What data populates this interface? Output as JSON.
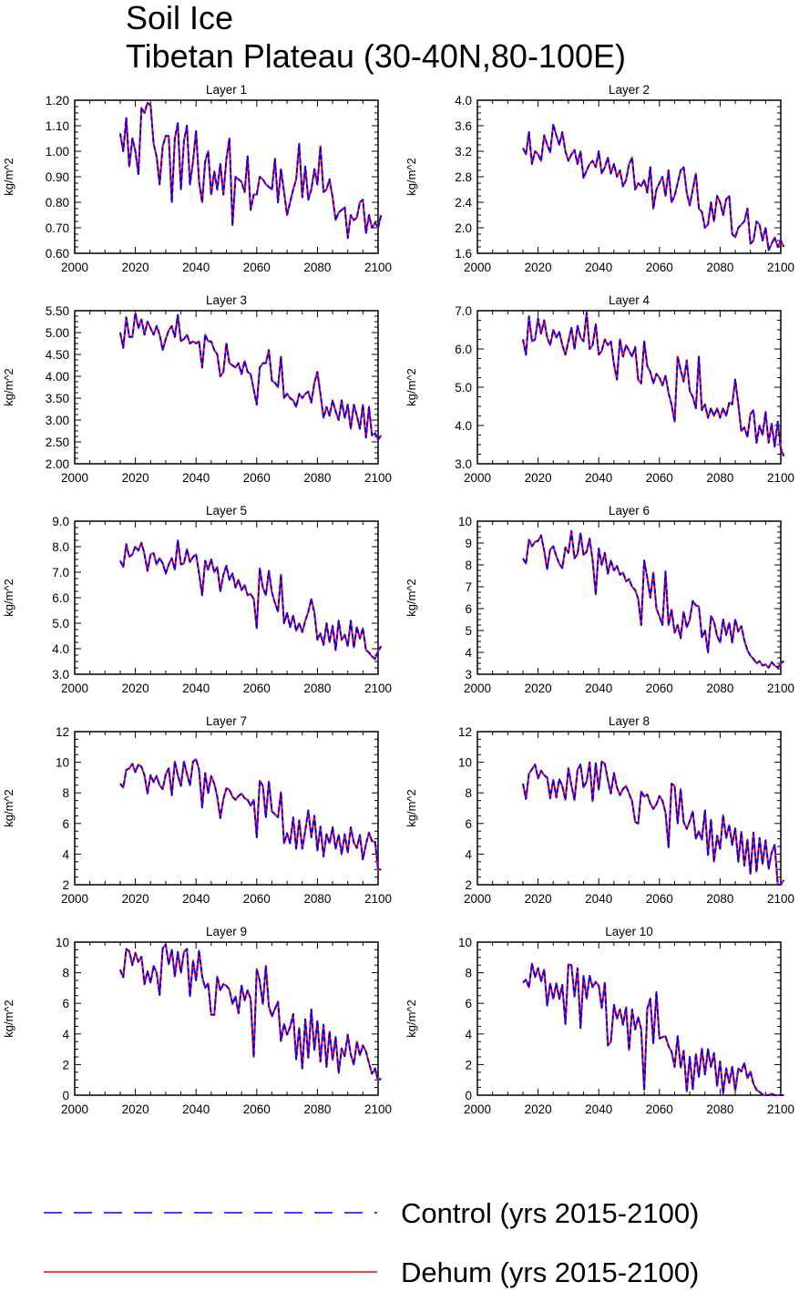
{
  "title": "Soil Ice",
  "subtitle": "Tibetan Plateau (30-40N,80-100E)",
  "legend": [
    {
      "label": "Control (yrs 2015-2100)",
      "color": "#0000ff",
      "style": "dashed"
    },
    {
      "label": "Dehum (yrs 2015-2100)",
      "color": "#ff0000",
      "style": "solid"
    }
  ],
  "chart_data": [
    {
      "type": "line",
      "title": "Layer 1",
      "xlabel": "",
      "ylabel": "kg/m^2",
      "xlim": [
        2000,
        2100
      ],
      "ylim": [
        0.6,
        1.2
      ],
      "xticks": [
        2000,
        2020,
        2040,
        2060,
        2080,
        2100
      ],
      "yticks": [
        0.6,
        0.7,
        0.8,
        0.9,
        1.0,
        1.1,
        1.2
      ],
      "ydecimals": 2,
      "x_start": 2015,
      "values": [
        1.07,
        1.0,
        1.13,
        0.94,
        1.05,
        1.0,
        0.91,
        1.17,
        1.15,
        1.19,
        1.18,
        1.03,
        0.98,
        0.87,
        1.02,
        1.06,
        1.06,
        0.8,
        1.05,
        1.11,
        0.85,
        1.04,
        1.1,
        0.87,
        0.96,
        1.08,
        0.88,
        0.8,
        0.96,
        1.0,
        0.83,
        0.92,
        0.85,
        0.95,
        0.83,
        0.97,
        1.05,
        0.71,
        0.9,
        0.89,
        0.88,
        0.84,
        0.98,
        0.77,
        0.83,
        0.83,
        0.9,
        0.89,
        0.87,
        0.86,
        0.85,
        0.97,
        0.8,
        0.93,
        0.84,
        0.75,
        0.8,
        0.85,
        0.89,
        1.03,
        0.82,
        0.94,
        0.81,
        0.85,
        0.93,
        0.87,
        1.02,
        0.84,
        0.85,
        0.89,
        0.82,
        0.73,
        0.76,
        0.77,
        0.78,
        0.66,
        0.75,
        0.73,
        0.74,
        0.8,
        0.81,
        0.68,
        0.75,
        0.7,
        0.72,
        0.7,
        0.75
      ],
      "series": [
        {
          "name": "Control (yrs 2015-2100)"
        },
        {
          "name": "Dehum (yrs 2015-2100)"
        }
      ]
    },
    {
      "type": "line",
      "title": "Layer 2",
      "xlabel": "",
      "ylabel": "kg/m^2",
      "xlim": [
        2000,
        2100
      ],
      "ylim": [
        1.6,
        4.0
      ],
      "xticks": [
        2000,
        2020,
        2040,
        2060,
        2080,
        2100
      ],
      "yticks": [
        1.6,
        2.0,
        2.4,
        2.8,
        3.2,
        3.6,
        4.0
      ],
      "ydecimals": 1,
      "x_start": 2015,
      "values": [
        3.25,
        3.15,
        3.5,
        3.0,
        3.2,
        3.15,
        3.05,
        3.45,
        3.3,
        3.18,
        3.62,
        3.45,
        3.3,
        3.5,
        3.2,
        3.05,
        3.15,
        3.22,
        3.0,
        3.2,
        2.78,
        2.9,
        3.0,
        3.05,
        2.95,
        3.2,
        2.85,
        2.95,
        3.1,
        2.85,
        3.0,
        2.8,
        2.9,
        2.65,
        2.75,
        3.0,
        3.1,
        2.6,
        2.7,
        2.65,
        2.75,
        2.55,
        2.95,
        2.3,
        2.6,
        2.7,
        2.8,
        2.5,
        2.9,
        2.4,
        2.5,
        2.7,
        2.9,
        2.95,
        2.55,
        2.35,
        2.6,
        2.85,
        2.3,
        2.25,
        2.0,
        2.05,
        2.4,
        2.1,
        2.5,
        2.4,
        2.2,
        2.45,
        2.5,
        1.9,
        1.85,
        2.0,
        2.05,
        2.1,
        2.3,
        1.75,
        1.8,
        2.1,
        2.05,
        1.8,
        2.0,
        1.65,
        1.75,
        1.85,
        1.7,
        1.8,
        1.7
      ],
      "series": [
        {
          "name": "Control (yrs 2015-2100)"
        },
        {
          "name": "Dehum (yrs 2015-2100)"
        }
      ]
    },
    {
      "type": "line",
      "title": "Layer 3",
      "xlabel": "",
      "ylabel": "kg/m^2",
      "xlim": [
        2000,
        2100
      ],
      "ylim": [
        2.0,
        5.5
      ],
      "xticks": [
        2000,
        2020,
        2040,
        2060,
        2080,
        2100
      ],
      "yticks": [
        2.0,
        2.5,
        3.0,
        3.5,
        4.0,
        4.5,
        5.0,
        5.5
      ],
      "ydecimals": 2,
      "x_start": 2015,
      "values": [
        5.0,
        4.65,
        5.35,
        4.9,
        4.9,
        5.45,
        5.1,
        5.3,
        4.95,
        5.25,
        5.1,
        4.95,
        5.15,
        4.95,
        4.6,
        4.85,
        5.05,
        5.15,
        4.9,
        5.4,
        4.8,
        4.85,
        4.95,
        4.75,
        4.8,
        4.75,
        4.8,
        4.2,
        4.95,
        4.8,
        4.8,
        4.6,
        4.5,
        4.0,
        4.1,
        4.75,
        4.3,
        4.25,
        4.2,
        4.3,
        4.05,
        4.35,
        4.1,
        4.05,
        3.7,
        3.35,
        4.2,
        4.3,
        4.3,
        4.6,
        3.9,
        3.85,
        3.75,
        4.45,
        3.5,
        3.6,
        3.5,
        3.45,
        3.3,
        3.6,
        3.5,
        3.6,
        3.65,
        3.4,
        3.85,
        4.1,
        3.6,
        3.05,
        3.3,
        3.1,
        3.45,
        3.2,
        3.0,
        3.45,
        3.05,
        3.35,
        2.8,
        3.35,
        3.1,
        2.8,
        3.35,
        2.6,
        3.3,
        2.65,
        2.7,
        2.55,
        2.65
      ],
      "series": [
        {
          "name": "Control (yrs 2015-2100)"
        },
        {
          "name": "Dehum (yrs 2015-2100)"
        }
      ]
    },
    {
      "type": "line",
      "title": "Layer 4",
      "xlabel": "",
      "ylabel": "kg/m^2",
      "xlim": [
        2000,
        2100
      ],
      "ylim": [
        3.0,
        7.0
      ],
      "xticks": [
        2000,
        2020,
        2040,
        2060,
        2080,
        2100
      ],
      "yticks": [
        3.0,
        4.0,
        5.0,
        6.0,
        7.0
      ],
      "ydecimals": 1,
      "x_start": 2015,
      "values": [
        6.25,
        5.85,
        6.85,
        6.2,
        6.25,
        6.8,
        6.4,
        6.75,
        6.3,
        6.1,
        6.5,
        6.3,
        6.45,
        6.1,
        5.85,
        6.2,
        6.55,
        6.0,
        6.6,
        6.3,
        6.2,
        6.95,
        6.0,
        6.1,
        6.65,
        5.85,
        5.95,
        6.25,
        6.1,
        6.2,
        5.6,
        5.2,
        6.25,
        5.8,
        6.1,
        5.95,
        5.8,
        6.05,
        5.2,
        5.1,
        6.2,
        5.55,
        5.4,
        5.1,
        5.35,
        5.25,
        5.05,
        5.3,
        4.85,
        4.55,
        4.1,
        5.8,
        5.45,
        5.15,
        5.7,
        4.9,
        4.75,
        4.45,
        5.8,
        4.4,
        4.55,
        4.2,
        4.45,
        4.25,
        4.45,
        4.2,
        4.45,
        4.25,
        4.6,
        4.55,
        5.2,
        4.55,
        3.85,
        3.95,
        3.7,
        4.3,
        4.4,
        3.55,
        4.0,
        3.75,
        4.35,
        3.55,
        4.05,
        3.45,
        4.1,
        3.4,
        3.2
      ],
      "series": [
        {
          "name": "Control (yrs 2015-2100)"
        },
        {
          "name": "Dehum (yrs 2015-2100)"
        }
      ]
    },
    {
      "type": "line",
      "title": "Layer 5",
      "xlabel": "",
      "ylabel": "kg/m^2",
      "xlim": [
        2000,
        2100
      ],
      "ylim": [
        3.0,
        9.0
      ],
      "xticks": [
        2000,
        2020,
        2040,
        2060,
        2080,
        2100
      ],
      "yticks": [
        3.0,
        4.0,
        5.0,
        6.0,
        7.0,
        8.0,
        9.0
      ],
      "ydecimals": 1,
      "x_start": 2015,
      "values": [
        7.45,
        7.2,
        8.1,
        7.6,
        7.7,
        8.0,
        7.85,
        8.15,
        7.7,
        7.05,
        7.7,
        7.75,
        7.3,
        7.55,
        7.35,
        6.95,
        7.3,
        7.55,
        7.1,
        8.25,
        7.3,
        7.35,
        7.9,
        7.4,
        7.6,
        7.7,
        6.95,
        6.1,
        7.45,
        7.1,
        7.5,
        7.0,
        7.2,
        6.25,
        6.9,
        7.25,
        6.7,
        6.95,
        6.4,
        6.7,
        6.3,
        6.5,
        6.1,
        6.15,
        5.95,
        4.8,
        7.15,
        6.4,
        6.1,
        7.05,
        6.2,
        5.8,
        5.45,
        6.9,
        5.0,
        5.4,
        4.85,
        5.3,
        4.7,
        5.0,
        4.65,
        5.1,
        5.45,
        5.95,
        5.4,
        4.35,
        4.6,
        4.15,
        5.0,
        4.25,
        4.9,
        3.95,
        5.1,
        4.35,
        4.55,
        4.1,
        5.1,
        4.05,
        4.85,
        4.4,
        4.8,
        3.95,
        3.85,
        3.7,
        3.6,
        3.9,
        4.1
      ],
      "series": [
        {
          "name": "Control (yrs 2015-2100)"
        },
        {
          "name": "Dehum (yrs 2015-2100)"
        }
      ]
    },
    {
      "type": "line",
      "title": "Layer 6",
      "xlabel": "",
      "ylabel": "kg/m^2",
      "xlim": [
        2000,
        2100
      ],
      "ylim": [
        3,
        10
      ],
      "xticks": [
        2000,
        2020,
        2040,
        2060,
        2080,
        2100
      ],
      "yticks": [
        3,
        4,
        5,
        6,
        7,
        8,
        9,
        10
      ],
      "ydecimals": 0,
      "x_start": 2015,
      "values": [
        8.3,
        8.05,
        9.15,
        8.85,
        9.05,
        9.1,
        9.35,
        8.65,
        7.8,
        8.7,
        8.85,
        8.4,
        8.05,
        7.85,
        8.8,
        8.55,
        9.55,
        8.3,
        8.5,
        9.45,
        8.45,
        8.6,
        9.2,
        8.2,
        6.65,
        8.75,
        8.0,
        8.55,
        7.6,
        8.2,
        7.75,
        7.95,
        7.55,
        7.65,
        7.25,
        7.35,
        7.0,
        6.85,
        6.45,
        5.25,
        8.2,
        7.4,
        6.5,
        7.65,
        6.0,
        5.65,
        5.25,
        7.7,
        5.25,
        5.95,
        4.9,
        5.25,
        4.65,
        5.85,
        5.15,
        5.5,
        6.35,
        6.15,
        6.1,
        4.7,
        5.0,
        4.0,
        5.65,
        5.4,
        4.75,
        4.45,
        5.5,
        4.8,
        5.35,
        4.45,
        5.5,
        4.95,
        5.2,
        4.55,
        4.1,
        3.85,
        3.7,
        3.5,
        3.6,
        3.4,
        3.45,
        3.3,
        3.55,
        3.4,
        3.3,
        3.5,
        3.6
      ],
      "series": [
        {
          "name": "Control (yrs 2015-2100)"
        },
        {
          "name": "Dehum (yrs 2015-2100)"
        }
      ]
    },
    {
      "type": "line",
      "title": "Layer 7",
      "xlabel": "",
      "ylabel": "kg/m^2",
      "xlim": [
        2000,
        2100
      ],
      "ylim": [
        2,
        12
      ],
      "xticks": [
        2000,
        2020,
        2040,
        2060,
        2080,
        2100
      ],
      "yticks": [
        2,
        4,
        6,
        8,
        10,
        12
      ],
      "ydecimals": 0,
      "x_start": 2015,
      "values": [
        8.6,
        8.35,
        9.5,
        9.6,
        9.9,
        9.35,
        9.85,
        9.7,
        9.15,
        7.95,
        9.15,
        8.7,
        9.1,
        8.5,
        8.25,
        9.2,
        9.6,
        7.85,
        10.05,
        9.15,
        8.45,
        10.05,
        9.25,
        8.5,
        10.05,
        10.2,
        9.5,
        7.05,
        9.3,
        8.0,
        9.1,
        8.6,
        7.75,
        6.35,
        7.6,
        8.3,
        8.2,
        7.75,
        7.55,
        7.8,
        7.95,
        7.65,
        7.55,
        7.15,
        7.55,
        5.1,
        8.8,
        8.45,
        6.4,
        8.75,
        6.8,
        6.6,
        6.4,
        8.05,
        4.7,
        5.35,
        4.7,
        6.4,
        4.35,
        6.2,
        4.35,
        5.55,
        6.85,
        5.1,
        6.5,
        4.25,
        5.8,
        3.85,
        5.3,
        4.7,
        5.75,
        4.35,
        5.25,
        4.0,
        5.3,
        4.1,
        5.75,
        4.75,
        4.4,
        5.25,
        3.65,
        4.65,
        5.4,
        4.85,
        4.8,
        3.0,
        3.0
      ],
      "series": [
        {
          "name": "Control (yrs 2015-2100)"
        },
        {
          "name": "Dehum (yrs 2015-2100)"
        }
      ]
    },
    {
      "type": "line",
      "title": "Layer 8",
      "xlabel": "",
      "ylabel": "kg/m^2",
      "xlim": [
        2000,
        2100
      ],
      "ylim": [
        2,
        12
      ],
      "xticks": [
        2000,
        2020,
        2040,
        2060,
        2080,
        2100
      ],
      "yticks": [
        2,
        4,
        6,
        8,
        10,
        12
      ],
      "ydecimals": 0,
      "x_start": 2015,
      "values": [
        8.6,
        7.6,
        9.25,
        9.55,
        9.85,
        8.95,
        9.45,
        9.15,
        9.0,
        7.65,
        8.85,
        7.7,
        8.9,
        8.45,
        7.55,
        9.6,
        8.5,
        7.55,
        9.5,
        9.85,
        8.35,
        8.75,
        10.0,
        7.45,
        9.95,
        8.2,
        10.05,
        9.9,
        8.85,
        7.95,
        9.3,
        8.35,
        7.85,
        8.25,
        8.45,
        7.95,
        7.45,
        6.1,
        6.0,
        8.1,
        7.75,
        7.9,
        7.3,
        6.95,
        7.25,
        7.8,
        7.5,
        6.7,
        4.45,
        8.6,
        8.45,
        6.0,
        8.25,
        6.1,
        5.65,
        6.15,
        6.8,
        5.0,
        5.5,
        4.95,
        6.85,
        3.95,
        6.25,
        3.5,
        5.2,
        4.35,
        6.55,
        5.05,
        5.9,
        4.6,
        5.7,
        3.5,
        5.45,
        3.25,
        4.95,
        2.7,
        5.4,
        2.85,
        5.05,
        3.35,
        4.9,
        3.05,
        4.1,
        4.6,
        2.0,
        2.0,
        2.3
      ],
      "series": [
        {
          "name": "Control (yrs 2015-2100)"
        },
        {
          "name": "Dehum (yrs 2015-2100)"
        }
      ]
    },
    {
      "type": "line",
      "title": "Layer 9",
      "xlabel": "",
      "ylabel": "kg/m^2",
      "xlim": [
        2000,
        2100
      ],
      "ylim": [
        0,
        10
      ],
      "xticks": [
        2000,
        2020,
        2040,
        2060,
        2080,
        2100
      ],
      "yticks": [
        0,
        2,
        4,
        6,
        8,
        10
      ],
      "ydecimals": 0,
      "x_start": 2015,
      "values": [
        8.2,
        7.7,
        9.55,
        9.4,
        8.5,
        9.3,
        8.7,
        9.05,
        7.25,
        8.1,
        7.35,
        8.45,
        8.0,
        6.55,
        9.6,
        9.85,
        8.55,
        9.5,
        7.75,
        9.35,
        8.0,
        9.35,
        9.55,
        6.45,
        8.8,
        7.5,
        9.45,
        7.75,
        7.0,
        7.3,
        5.25,
        5.25,
        7.75,
        6.85,
        7.25,
        7.15,
        6.9,
        5.95,
        6.45,
        5.35,
        7.15,
        6.2,
        6.85,
        6.3,
        2.5,
        8.25,
        7.45,
        5.95,
        8.45,
        5.8,
        5.15,
        5.65,
        6.1,
        3.55,
        4.65,
        3.95,
        4.45,
        5.3,
        2.35,
        4.4,
        1.75,
        4.95,
        2.45,
        5.6,
        2.95,
        4.85,
        2.2,
        4.6,
        1.85,
        4.15,
        2.3,
        3.8,
        1.45,
        3.05,
        2.55,
        3.95,
        2.65,
        2.0,
        3.5,
        2.6,
        3.25,
        2.85,
        2.1,
        1.4,
        1.75,
        0.95,
        1.1
      ],
      "series": [
        {
          "name": "Control (yrs 2015-2100)"
        },
        {
          "name": "Dehum (yrs 2015-2100)"
        }
      ]
    },
    {
      "type": "line",
      "title": "Layer 10",
      "xlabel": "",
      "ylabel": "kg/m^2",
      "xlim": [
        2000,
        2100
      ],
      "ylim": [
        0,
        10
      ],
      "xticks": [
        2000,
        2020,
        2040,
        2060,
        2080,
        2100
      ],
      "yticks": [
        0,
        2,
        4,
        6,
        8,
        10
      ],
      "ydecimals": 0,
      "x_start": 2015,
      "values": [
        7.35,
        7.55,
        7.05,
        8.6,
        7.7,
        8.3,
        7.45,
        8.2,
        5.85,
        7.3,
        6.3,
        7.3,
        6.3,
        7.2,
        4.65,
        8.55,
        8.5,
        6.45,
        8.3,
        4.4,
        7.8,
        6.3,
        7.8,
        7.05,
        7.4,
        7.15,
        5.7,
        7.35,
        3.25,
        3.5,
        5.9,
        5.0,
        5.6,
        4.6,
        5.75,
        2.95,
        5.6,
        4.3,
        5.1,
        4.3,
        0.35,
        5.65,
        6.3,
        3.4,
        6.75,
        3.7,
        3.8,
        3.85,
        3.2,
        2.85,
        1.85,
        3.85,
        1.8,
        2.9,
        0.25,
        2.5,
        0.4,
        2.7,
        1.2,
        3.05,
        1.35,
        3.0,
        1.85,
        2.75,
        0.6,
        2.2,
        0.1,
        1.75,
        0.8,
        1.85,
        0.3,
        1.75,
        1.55,
        2.1,
        1.1,
        1.55,
        0.75,
        0.35,
        0.2,
        0.05,
        0.0,
        0.0,
        0.1,
        0.0,
        0.0,
        0.0,
        0.0
      ],
      "series": [
        {
          "name": "Control (yrs 2015-2100)"
        },
        {
          "name": "Dehum (yrs 2015-2100)"
        }
      ]
    }
  ]
}
